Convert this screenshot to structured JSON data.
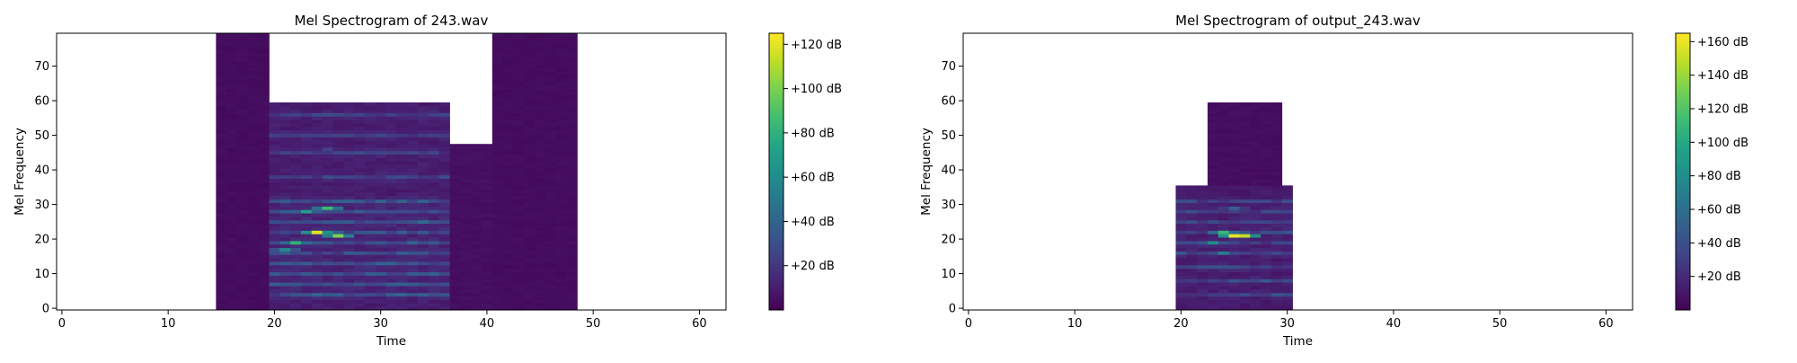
{
  "chart_data": [
    {
      "type": "heatmap",
      "title": "Mel Spectrogram of 243.wav",
      "xlabel": "Time",
      "ylabel": "Mel Frequency",
      "xlim": [
        -0.5,
        62.5
      ],
      "ylim": [
        -0.5,
        79.5
      ],
      "x_ticks": [
        0,
        10,
        20,
        30,
        40,
        50,
        60
      ],
      "y_ticks": [
        0,
        10,
        20,
        30,
        40,
        50,
        60,
        70
      ],
      "colormap": "viridis",
      "colorbar": {
        "range": [
          0,
          125
        ],
        "ticks": [
          20,
          40,
          60,
          80,
          100,
          120
        ],
        "tick_labels": [
          "+20 dB",
          "+40 dB",
          "+60 dB",
          "+80 dB",
          "+100 dB",
          "+120 dB"
        ]
      },
      "energy_regions": [
        {
          "t": [
            20,
            37
          ],
          "mel": [
            0,
            60
          ],
          "level_db": 10
        },
        {
          "t": [
            15,
            20
          ],
          "mel": [
            0,
            80
          ],
          "level_db": 4
        },
        {
          "t": [
            36,
            41
          ],
          "mel": [
            0,
            48
          ],
          "level_db": 5
        },
        {
          "t": [
            41,
            49
          ],
          "mel": [
            0,
            80
          ],
          "level_db": 4
        }
      ],
      "harmonic_bands_mel": [
        4,
        7,
        10,
        13,
        16,
        19,
        22,
        25,
        28,
        31,
        38,
        45,
        50,
        56
      ],
      "peaks": [
        {
          "t": 24,
          "mel": 22,
          "level_db": 120
        },
        {
          "t": 26,
          "mel": 21,
          "level_db": 100
        },
        {
          "t": 25,
          "mel": 29,
          "level_db": 85
        },
        {
          "t": 22,
          "mel": 19,
          "level_db": 80
        },
        {
          "t": 23,
          "mel": 28,
          "level_db": 70
        },
        {
          "t": 21,
          "mel": 17,
          "level_db": 60
        },
        {
          "t": 25,
          "mel": 56,
          "level_db": 30
        },
        {
          "t": 25,
          "mel": 46,
          "level_db": 25
        }
      ]
    },
    {
      "type": "heatmap",
      "title": "Mel Spectrogram of output_243.wav",
      "xlabel": "Time",
      "ylabel": "Mel Frequency",
      "xlim": [
        -0.5,
        62.5
      ],
      "ylim": [
        -0.5,
        79.5
      ],
      "x_ticks": [
        0,
        10,
        20,
        30,
        40,
        50,
        60
      ],
      "y_ticks": [
        0,
        10,
        20,
        30,
        40,
        50,
        60,
        70
      ],
      "colormap": "viridis",
      "colorbar": {
        "range": [
          0,
          165
        ],
        "ticks": [
          20,
          40,
          60,
          80,
          100,
          120,
          140,
          160
        ],
        "tick_labels": [
          "+20 dB",
          "+40 dB",
          "+60 dB",
          "+80 dB",
          "+100 dB",
          "+120 dB",
          "+140 dB",
          "+160 dB"
        ]
      },
      "energy_regions": [
        {
          "t": [
            20,
            31
          ],
          "mel": [
            0,
            36
          ],
          "level_db": 12
        },
        {
          "t": [
            23,
            30
          ],
          "mel": [
            36,
            60
          ],
          "level_db": 6
        }
      ],
      "harmonic_bands_mel": [
        4,
        8,
        12,
        16,
        19,
        22,
        25,
        28,
        31
      ],
      "peaks": [
        {
          "t": 25,
          "mel": 21,
          "level_db": 160
        },
        {
          "t": 26,
          "mel": 21,
          "level_db": 150
        },
        {
          "t": 24,
          "mel": 22,
          "level_db": 110
        },
        {
          "t": 23,
          "mel": 19,
          "level_db": 80
        },
        {
          "t": 24,
          "mel": 16,
          "level_db": 70
        },
        {
          "t": 25,
          "mel": 29,
          "level_db": 50
        }
      ]
    }
  ]
}
